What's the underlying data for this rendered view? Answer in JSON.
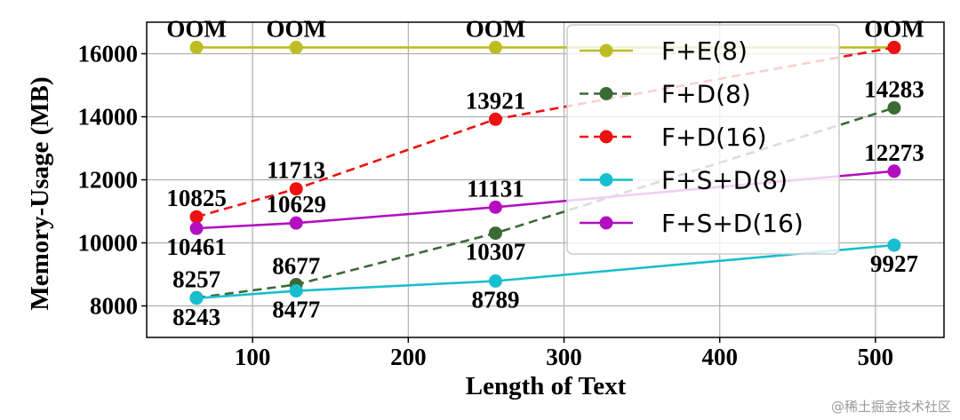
{
  "chart_data": {
    "type": "line",
    "xlabel": "Length of Text",
    "ylabel": "Memory-Usage (MB)",
    "xlim": [
      32,
      544
    ],
    "ylim": [
      7000,
      17000
    ],
    "xticks": [
      100,
      200,
      300,
      400,
      500
    ],
    "yticks": [
      8000,
      10000,
      12000,
      14000,
      16000
    ],
    "grid": true,
    "legend_position": "top-right",
    "x": [
      64,
      128,
      256,
      512
    ],
    "series": [
      {
        "name": "F+E(8)",
        "color": "#bcbd22",
        "dash": false,
        "values": [
          16200,
          16200,
          16200,
          16200
        ],
        "labels": [
          "OOM",
          "OOM",
          "OOM",
          "OOM"
        ],
        "label_pos": [
          "above",
          "above",
          "above",
          "above"
        ]
      },
      {
        "name": "F+D(8)",
        "color": "#3a6b35",
        "dash": true,
        "values": [
          8257,
          8677,
          10307,
          14283
        ],
        "labels": [
          "8257",
          "8677",
          "10307",
          "14283"
        ],
        "label_pos": [
          "above",
          "above",
          "below",
          "above"
        ]
      },
      {
        "name": "F+D(16)",
        "color": "#ee1111",
        "dash": true,
        "values": [
          10825,
          11713,
          13921,
          16200
        ],
        "labels": [
          "10825",
          "11713",
          "13921",
          ""
        ],
        "label_pos": [
          "above",
          "above",
          "above",
          "above"
        ]
      },
      {
        "name": "F+S+D(8)",
        "color": "#17becf",
        "dash": false,
        "values": [
          8243,
          8477,
          8789,
          9927
        ],
        "labels": [
          "8243",
          "8477",
          "8789",
          "9927"
        ],
        "label_pos": [
          "below",
          "below",
          "below",
          "below"
        ]
      },
      {
        "name": "F+S+D(16)",
        "color": "#b30fc0",
        "dash": false,
        "values": [
          10461,
          10629,
          11131,
          12273
        ],
        "labels": [
          "10461",
          "10629",
          "11131",
          "12273"
        ],
        "label_pos": [
          "below",
          "above",
          "above",
          "above"
        ]
      }
    ]
  },
  "watermark": "@稀土掘金技术社区"
}
